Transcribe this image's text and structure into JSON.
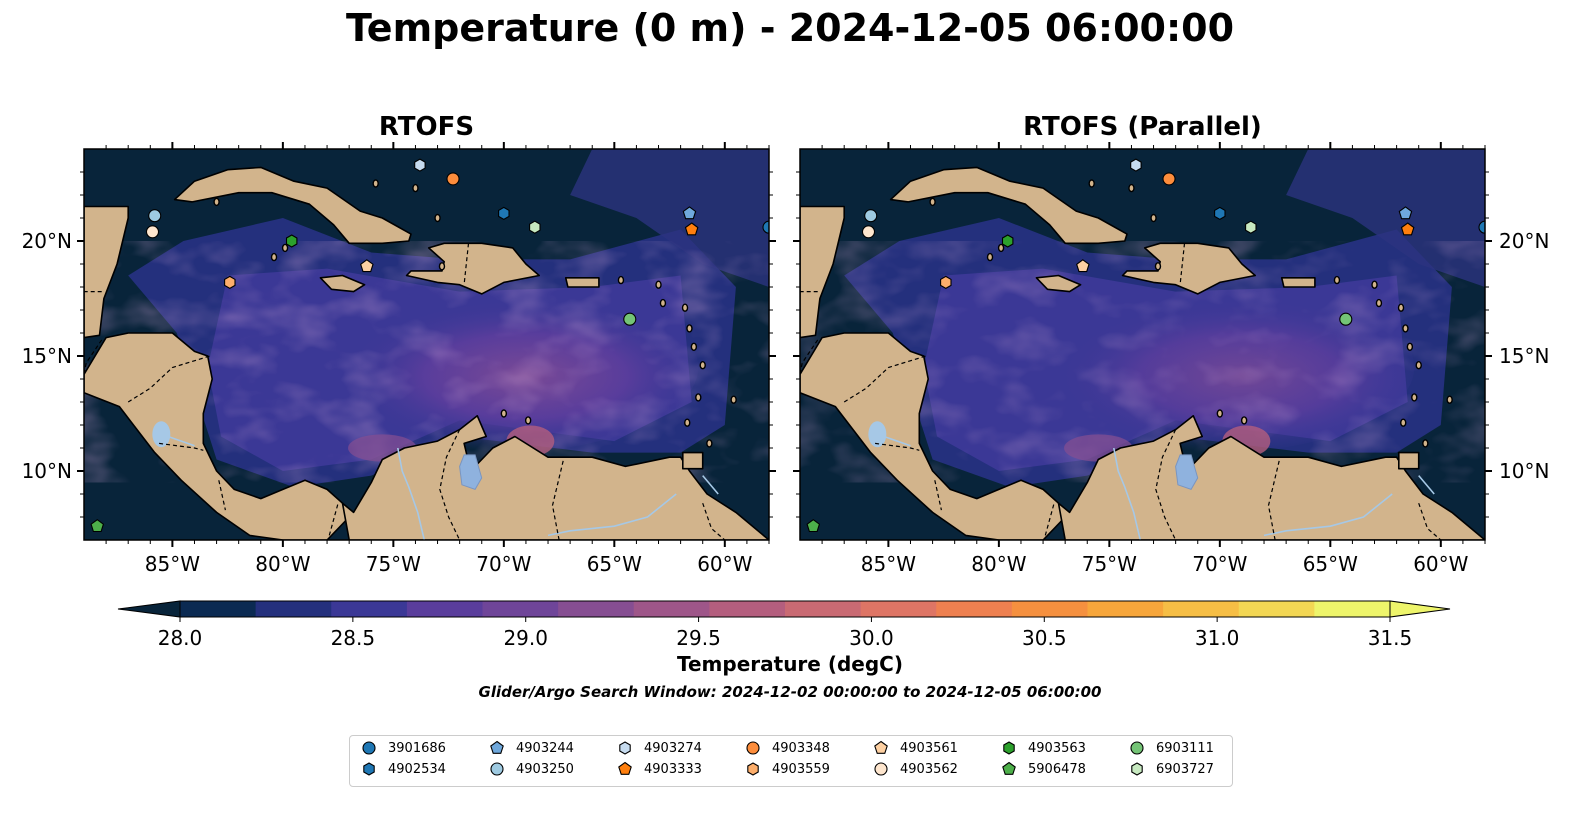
{
  "title": "Temperature (0 m) - 2024-12-05 06:00:00",
  "panels": [
    {
      "title": "RTOFS"
    },
    {
      "title": "RTOFS (Parallel)"
    }
  ],
  "map": {
    "lon_range": [
      -89,
      -58
    ],
    "lat_range": [
      7,
      24
    ],
    "lon_ticks": [
      "85°W",
      "80°W",
      "75°W",
      "70°W",
      "65°W",
      "60°W"
    ],
    "lat_ticks": [
      "10°N",
      "15°N",
      "20°N"
    ],
    "land_color": "#d2b48c",
    "lake_color": "#a6c8e6"
  },
  "colorbar": {
    "label": "Temperature (degC)",
    "ticks": [
      "28.0",
      "28.5",
      "29.0",
      "29.5",
      "30.0",
      "30.5",
      "31.0",
      "31.5"
    ],
    "colors": [
      "#0b2a52",
      "#24307d",
      "#3b3896",
      "#5a3d9c",
      "#6f4599",
      "#864e92",
      "#9e5689",
      "#b45e7e",
      "#c96a73",
      "#de7565",
      "#ee8050",
      "#f5903f",
      "#f7a63b",
      "#f6be45",
      "#f3d754",
      "#eef56b"
    ],
    "under_color": "#08243a",
    "over_color": "#eef56b"
  },
  "search_window": "Glider/Argo Search Window: 2024-12-02 00:00:00 to 2024-12-05 06:00:00",
  "floats": [
    {
      "id": "3901686",
      "marker": "circle",
      "color": "#1f77b4",
      "lon": -58.0,
      "lat": 20.6
    },
    {
      "id": "4902534",
      "marker": "hexagon",
      "color": "#1f77b4",
      "lon": -70.0,
      "lat": 21.2
    },
    {
      "id": "4903244",
      "marker": "pentagon",
      "color": "#6fa8dc",
      "lon": -61.6,
      "lat": 21.2
    },
    {
      "id": "4903250",
      "marker": "circle",
      "color": "#9ecae1",
      "lon": -85.8,
      "lat": 21.1
    },
    {
      "id": "4903274",
      "marker": "hexagon",
      "color": "#c6dbef",
      "lon": -73.8,
      "lat": 23.3
    },
    {
      "id": "4903333",
      "marker": "pentagon",
      "color": "#ff7f0e",
      "lon": -61.5,
      "lat": 20.5
    },
    {
      "id": "4903348",
      "marker": "circle",
      "color": "#fd8d3c",
      "lon": -72.3,
      "lat": 22.7
    },
    {
      "id": "4903559",
      "marker": "hexagon",
      "color": "#fdae6b",
      "lon": -82.4,
      "lat": 18.2
    },
    {
      "id": "4903561",
      "marker": "pentagon",
      "color": "#fdd0a2",
      "lon": -76.2,
      "lat": 18.9
    },
    {
      "id": "4903562",
      "marker": "circle",
      "color": "#fee6ce",
      "lon": -85.9,
      "lat": 20.4
    },
    {
      "id": "4903563",
      "marker": "hexagon",
      "color": "#2ca02c",
      "lon": -79.6,
      "lat": 20.0
    },
    {
      "id": "5906478",
      "marker": "pentagon",
      "color": "#4daf4a",
      "lon": -88.4,
      "lat": 7.6
    },
    {
      "id": "6903111",
      "marker": "circle",
      "color": "#74c476",
      "lon": -64.3,
      "lat": 16.6
    },
    {
      "id": "6903727",
      "marker": "hexagon",
      "color": "#c7e9c0",
      "lon": -68.6,
      "lat": 20.6
    }
  ]
}
